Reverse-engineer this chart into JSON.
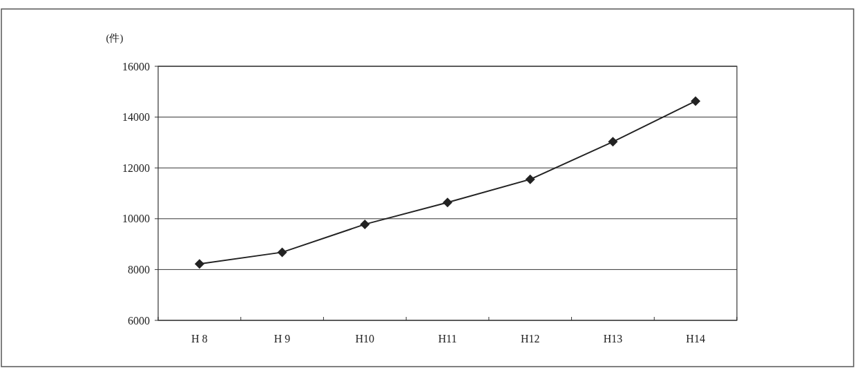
{
  "chart_data": {
    "type": "line",
    "ylabel": "(件)",
    "categories": [
      "H 8",
      "H 9",
      "H10",
      "H11",
      "H12",
      "H13",
      "H14"
    ],
    "series": [
      {
        "color": "#222222",
        "values": [
          8220,
          8680,
          9780,
          10640,
          11550,
          13030,
          14630
        ]
      }
    ],
    "ylim": [
      6000,
      16000
    ],
    "yticks": [
      6000,
      8000,
      10000,
      12000,
      14000,
      16000
    ],
    "grid": "y",
    "marker": "diamond",
    "line_style": "solid"
  }
}
